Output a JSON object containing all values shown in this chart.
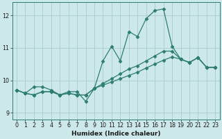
{
  "xlabel": "Humidex (Indice chaleur)",
  "xlim": [
    -0.5,
    23.5
  ],
  "ylim": [
    8.8,
    12.4
  ],
  "yticks": [
    9,
    10,
    11,
    12
  ],
  "xticks": [
    0,
    1,
    2,
    3,
    4,
    5,
    6,
    7,
    8,
    9,
    10,
    11,
    12,
    13,
    14,
    15,
    16,
    17,
    18,
    19,
    20,
    21,
    22,
    23
  ],
  "bg_color": "#cce8ea",
  "grid_color": "#b0cfd2",
  "line_color": "#2e7d72",
  "series_main": [
    9.7,
    9.6,
    9.8,
    9.8,
    9.7,
    9.55,
    9.65,
    9.65,
    9.35,
    9.75,
    10.6,
    11.05,
    10.6,
    11.5,
    11.35,
    11.9,
    12.15,
    12.2,
    11.05,
    10.65,
    10.55,
    10.7,
    10.4,
    10.4
  ],
  "series_reg1": [
    9.7,
    9.6,
    9.55,
    9.65,
    9.65,
    9.55,
    9.6,
    9.55,
    9.55,
    9.75,
    9.9,
    10.05,
    10.2,
    10.35,
    10.45,
    10.6,
    10.75,
    10.9,
    10.9,
    10.65,
    10.55,
    10.7,
    10.4,
    10.4
  ],
  "series_reg2": [
    9.7,
    9.6,
    9.55,
    9.65,
    9.65,
    9.55,
    9.6,
    9.55,
    9.55,
    9.75,
    9.85,
    9.95,
    10.05,
    10.15,
    10.25,
    10.38,
    10.5,
    10.62,
    10.72,
    10.65,
    10.55,
    10.7,
    10.4,
    10.4
  ],
  "marker": "D",
  "markersize": 2.5,
  "linewidth": 0.9
}
